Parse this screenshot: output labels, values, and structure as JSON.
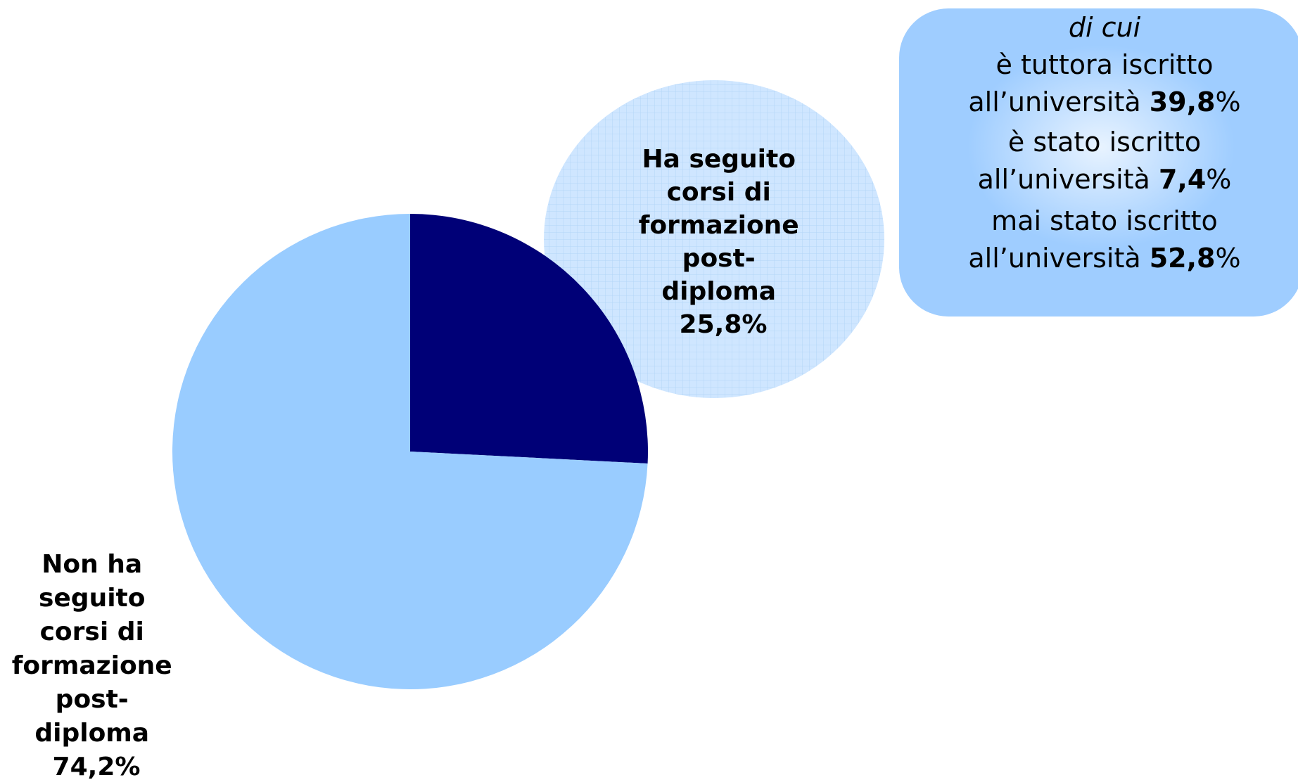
{
  "chart_data": {
    "type": "pie",
    "slices": [
      {
        "label_lines": [
          "Ha seguito",
          "corsi di",
          "formazione",
          "post-",
          "diploma",
          "25,8%"
        ],
        "value": 25.8,
        "color": "#000077"
      },
      {
        "label_lines": [
          "Non ha",
          "seguito",
          "corsi di",
          "formazione",
          "post-",
          "diploma",
          "74,2%"
        ],
        "value": 74.2,
        "color": "#99ccff"
      }
    ],
    "start_angle_deg": 0,
    "direction": "clockwise"
  },
  "callout": {
    "title": "di cui",
    "items": [
      {
        "line1": "è tuttora iscritto",
        "prefix": "all’università ",
        "value": "39,8",
        "suffix": "%"
      },
      {
        "line1": "è stato iscritto",
        "prefix": "all’università ",
        "value": "7,4",
        "suffix": "%"
      },
      {
        "line1": "mai stato iscritto",
        "prefix": "all’università ",
        "value": "52,8",
        "suffix": "%"
      }
    ]
  },
  "colors": {
    "bubble_fill": "#cfe6ff",
    "bubble_grid": "#b3d5f7",
    "callout_fill": "#9fcdff",
    "callout_highlight": "#e8f3ff"
  }
}
